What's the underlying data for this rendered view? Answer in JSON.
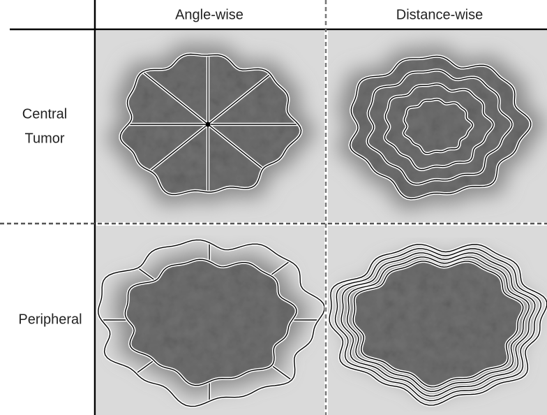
{
  "header": {
    "columns": [
      "Angle-wise",
      "Distance-wise"
    ]
  },
  "rows": [
    {
      "label_lines": [
        "Central",
        "Tumor"
      ]
    },
    {
      "label_lines": [
        "Peripheral"
      ]
    }
  ]
}
